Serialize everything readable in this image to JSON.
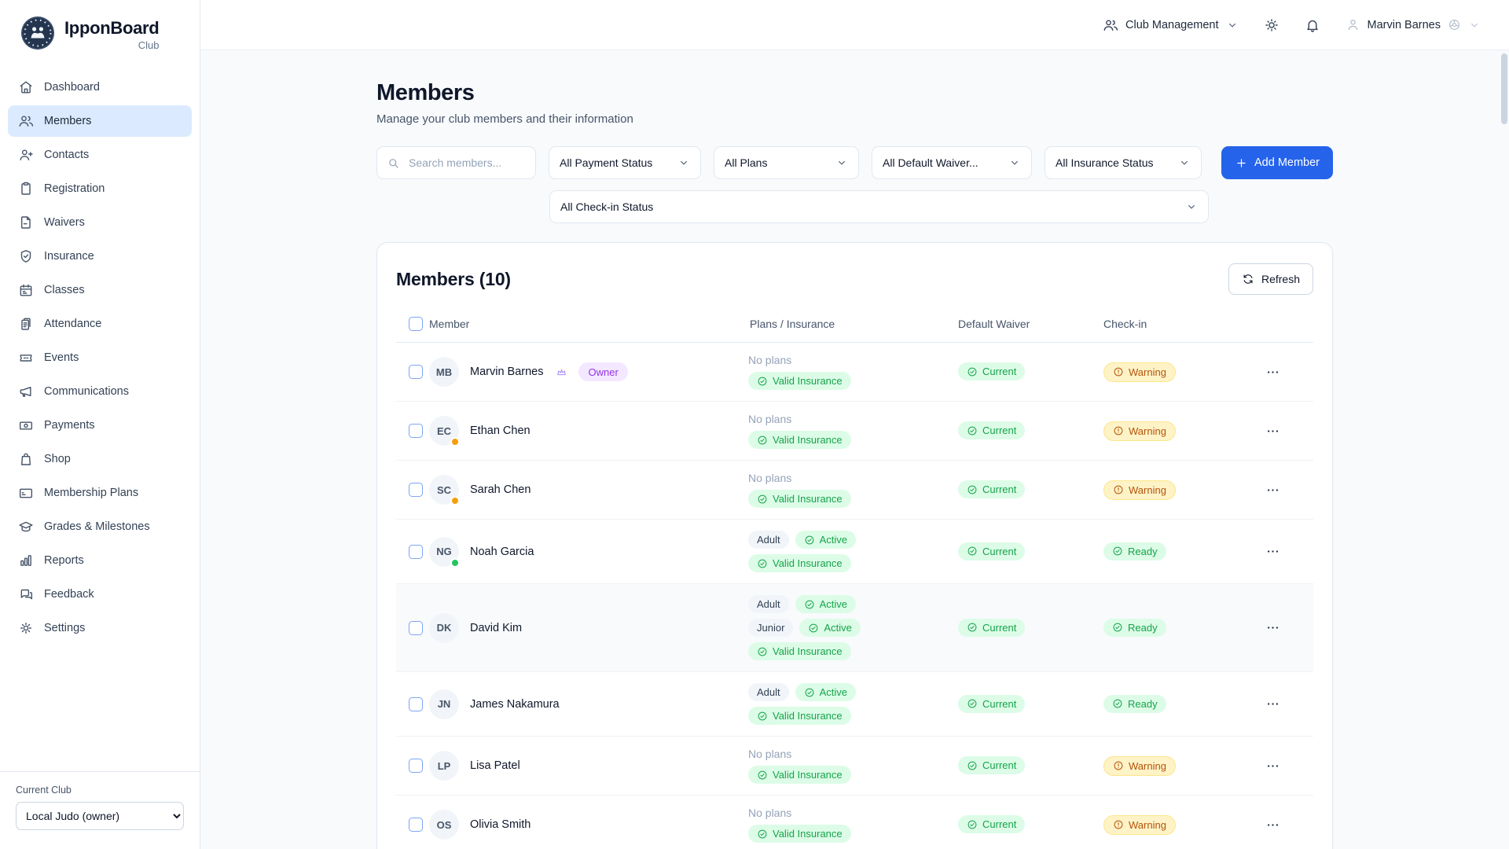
{
  "brand": {
    "name": "IpponBoard",
    "tagline": "Club"
  },
  "topbar": {
    "context": {
      "label": "Club Management",
      "icon": "users"
    },
    "user": {
      "name": "Marvin Barnes"
    }
  },
  "sidebar": {
    "items": [
      {
        "label": "Dashboard",
        "icon": "home",
        "active": false
      },
      {
        "label": "Members",
        "icon": "users",
        "active": true
      },
      {
        "label": "Contacts",
        "icon": "user-plus",
        "active": false
      },
      {
        "label": "Registration",
        "icon": "clipboard",
        "active": false
      },
      {
        "label": "Waivers",
        "icon": "file-text",
        "active": false
      },
      {
        "label": "Insurance",
        "icon": "shield-check",
        "active": false
      },
      {
        "label": "Classes",
        "icon": "calendar",
        "active": false
      },
      {
        "label": "Attendance",
        "icon": "clipboard-list",
        "active": false
      },
      {
        "label": "Events",
        "icon": "ticket",
        "active": false
      },
      {
        "label": "Communications",
        "icon": "megaphone",
        "active": false
      },
      {
        "label": "Payments",
        "icon": "banknote",
        "active": false
      },
      {
        "label": "Shop",
        "icon": "shopping-bag",
        "active": false
      },
      {
        "label": "Membership Plans",
        "icon": "credit-card",
        "active": false
      },
      {
        "label": "Grades & Milestones",
        "icon": "graduation-cap",
        "active": false
      },
      {
        "label": "Reports",
        "icon": "bar-chart",
        "active": false
      },
      {
        "label": "Feedback",
        "icon": "message-circle",
        "active": false
      },
      {
        "label": "Settings",
        "icon": "gear",
        "active": false
      }
    ],
    "current_club_label": "Current Club",
    "club_options": [
      "Local Judo (owner)"
    ],
    "club_selected": "Local Judo (owner)"
  },
  "page": {
    "title": "Members",
    "subtitle": "Manage your club members and their information"
  },
  "filters": {
    "search_placeholder": "Search members...",
    "dropdowns": [
      "All Payment Status",
      "All Plans",
      "All Default Waiver...",
      "All Insurance Status"
    ],
    "checkin_dropdown": "All Check-in Status",
    "add_member_label": "Add Member"
  },
  "members_card": {
    "title": "Members (10)",
    "refresh_label": "Refresh",
    "columns": [
      "Member",
      "Plans / Insurance",
      "Default Waiver",
      "Check-in"
    ],
    "no_plans_label": "No plans",
    "rows": [
      {
        "initials": "MB",
        "name": "Marvin Barnes",
        "owner": true,
        "owner_label": "Owner",
        "dot": null,
        "plans": [],
        "insurance": "Valid Insurance",
        "waiver": "Current",
        "checkin": "Warning",
        "checkin_status": "warning",
        "highlighted": false
      },
      {
        "initials": "EC",
        "name": "Ethan Chen",
        "owner": false,
        "dot": "orange",
        "plans": [],
        "insurance": "Valid Insurance",
        "waiver": "Current",
        "checkin": "Warning",
        "checkin_status": "warning",
        "highlighted": false
      },
      {
        "initials": "SC",
        "name": "Sarah Chen",
        "owner": false,
        "dot": "orange",
        "plans": [],
        "insurance": "Valid Insurance",
        "waiver": "Current",
        "checkin": "Warning",
        "checkin_status": "warning",
        "highlighted": false
      },
      {
        "initials": "NG",
        "name": "Noah Garcia",
        "owner": false,
        "dot": "green",
        "plans": [
          {
            "name": "Adult",
            "status": "Active"
          }
        ],
        "insurance": "Valid Insurance",
        "waiver": "Current",
        "checkin": "Ready",
        "checkin_status": "ready",
        "highlighted": false
      },
      {
        "initials": "DK",
        "name": "David Kim",
        "owner": false,
        "dot": null,
        "plans": [
          {
            "name": "Adult",
            "status": "Active"
          },
          {
            "name": "Junior",
            "status": "Active"
          }
        ],
        "insurance": "Valid Insurance",
        "waiver": "Current",
        "checkin": "Ready",
        "checkin_status": "ready",
        "highlighted": true
      },
      {
        "initials": "JN",
        "name": "James Nakamura",
        "owner": false,
        "dot": null,
        "plans": [
          {
            "name": "Adult",
            "status": "Active"
          }
        ],
        "insurance": "Valid Insurance",
        "waiver": "Current",
        "checkin": "Ready",
        "checkin_status": "ready",
        "highlighted": false
      },
      {
        "initials": "LP",
        "name": "Lisa Patel",
        "owner": false,
        "dot": null,
        "plans": [],
        "insurance": "Valid Insurance",
        "waiver": "Current",
        "checkin": "Warning",
        "checkin_status": "warning",
        "highlighted": false
      },
      {
        "initials": "OS",
        "name": "Olivia Smith",
        "owner": false,
        "dot": null,
        "plans": [],
        "insurance": "Valid Insurance",
        "waiver": "Current",
        "checkin": "Warning",
        "checkin_status": "warning",
        "highlighted": false
      }
    ]
  },
  "colors": {
    "accent": "#2563EB",
    "nav_active_bg": "#DBEAFE",
    "green_badge_bg": "#DCFCE7",
    "green_badge_text": "#16A34A",
    "warning_badge_bg": "#FEF3C7",
    "warning_badge_text": "#B45309",
    "owner_badge_bg": "#F3E8FF",
    "owner_badge_text": "#9333EA",
    "dot_orange": "#F59E0B",
    "dot_green": "#22C55E"
  }
}
